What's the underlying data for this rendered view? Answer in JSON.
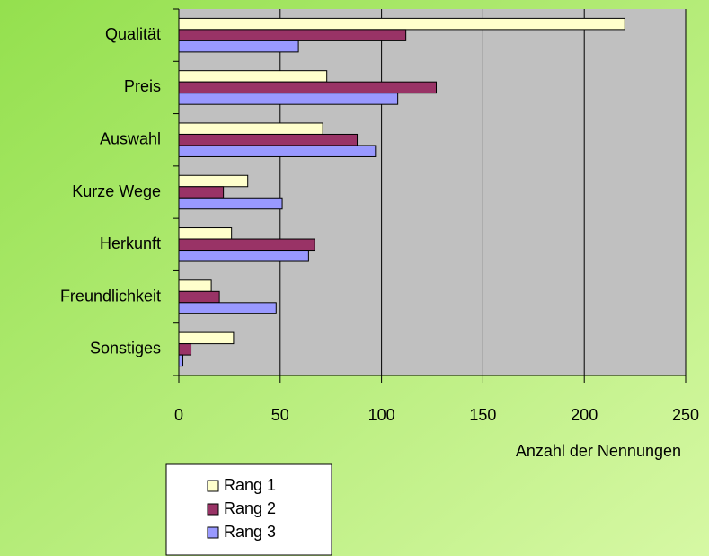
{
  "chart_data": {
    "type": "bar",
    "orientation": "horizontal",
    "categories": [
      "Qualität",
      "Preis",
      "Auswahl",
      "Kurze Wege",
      "Herkunft",
      "Freundlichkeit",
      "Sonstiges"
    ],
    "series": [
      {
        "name": "Rang 1",
        "color": "#ffffcc",
        "values": [
          220,
          73,
          71,
          34,
          26,
          16,
          27
        ]
      },
      {
        "name": "Rang 2",
        "color": "#993366",
        "values": [
          112,
          127,
          88,
          22,
          67,
          20,
          6
        ]
      },
      {
        "name": "Rang 3",
        "color": "#9999ff",
        "values": [
          59,
          108,
          97,
          51,
          64,
          48,
          2
        ]
      }
    ],
    "xlabel": "Anzahl der Nennungen",
    "xlim": [
      0,
      250
    ],
    "xticks": [
      0,
      50,
      100,
      150,
      200,
      250
    ],
    "grid": true
  }
}
